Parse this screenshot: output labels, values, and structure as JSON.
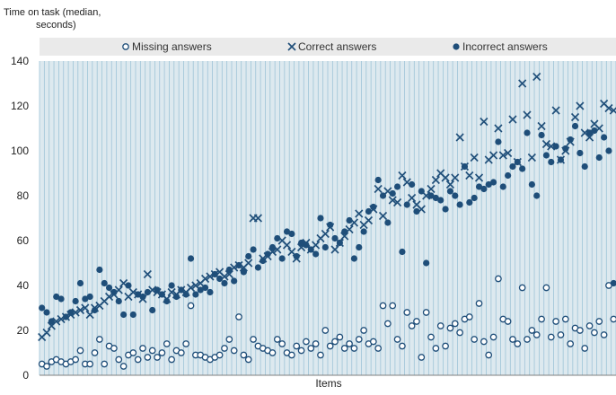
{
  "chart_data": {
    "type": "scatter",
    "ylabel_line1": "Time on task (median,",
    "ylabel_line2": "seconds)",
    "xlabel": "Items",
    "ylim": [
      0,
      140
    ],
    "yticks": [
      "0",
      "20",
      "40",
      "60",
      "80",
      "100",
      "120",
      "140"
    ],
    "grid": "vertical per item",
    "legend_placement": "top",
    "item_count": 120,
    "colors": {
      "primary": "#1f4e79",
      "grid": "#9ec4d7",
      "band": "#dde9ef",
      "axis": "#7f7f7f"
    },
    "series": [
      {
        "name": "Missing answers",
        "marker": "open-circle",
        "values": [
          5,
          4,
          6,
          7,
          6,
          5,
          6,
          7,
          11,
          5,
          5,
          10,
          16,
          5,
          13,
          12,
          7,
          4,
          9,
          10,
          7,
          12,
          8,
          11,
          8,
          10,
          14,
          7,
          11,
          10,
          14,
          31,
          9,
          9,
          8,
          7,
          8,
          9,
          12,
          16,
          11,
          26,
          9,
          7,
          16,
          13,
          12,
          11,
          10,
          16,
          14,
          10,
          9,
          13,
          11,
          15,
          12,
          14,
          9,
          20,
          13,
          15,
          17,
          12,
          14,
          12,
          16,
          20,
          14,
          15,
          12,
          31,
          23,
          31,
          16,
          13,
          28,
          22,
          24,
          8,
          28,
          17,
          12,
          22,
          13,
          21,
          23,
          19,
          25,
          26,
          16,
          32,
          15,
          9,
          17,
          43,
          25,
          24,
          16,
          14,
          39,
          16,
          20,
          18,
          25,
          39,
          17,
          24,
          18,
          25,
          14,
          21,
          20,
          12,
          22,
          19,
          24,
          18,
          40,
          25
        ]
      },
      {
        "name": "Correct answers",
        "marker": "x",
        "values": [
          17,
          19,
          22,
          24,
          25,
          26,
          27,
          28,
          29,
          30,
          27,
          30,
          31,
          33,
          35,
          36,
          38,
          41,
          35,
          37,
          36,
          34,
          45,
          38,
          37,
          36,
          34,
          37,
          36,
          38,
          37,
          39,
          40,
          41,
          43,
          44,
          45,
          46,
          44,
          45,
          48,
          49,
          48,
          50,
          70,
          70,
          52,
          53,
          55,
          56,
          60,
          58,
          55,
          52,
          57,
          59,
          56,
          58,
          61,
          63,
          66,
          56,
          59,
          62,
          65,
          68,
          72,
          67,
          69,
          74,
          83,
          71,
          82,
          78,
          77,
          89,
          86,
          79,
          76,
          74,
          80,
          83,
          87,
          90,
          88,
          85,
          88,
          106,
          93,
          89,
          97,
          88,
          113,
          96,
          98,
          110,
          98,
          99,
          114,
          95,
          130,
          116,
          97,
          133,
          111,
          103,
          102,
          118,
          96,
          100,
          104,
          115,
          120,
          108,
          106,
          112,
          110,
          121,
          119,
          118
        ]
      },
      {
        "name": "Incorrect answers",
        "marker": "filled-circle",
        "values": [
          30,
          28,
          24,
          35,
          34,
          26,
          28,
          33,
          41,
          34,
          35,
          29,
          47,
          41,
          39,
          37,
          33,
          27,
          40,
          27,
          36,
          35,
          37,
          29,
          38,
          36,
          33,
          40,
          35,
          38,
          36,
          52,
          36,
          38,
          39,
          37,
          45,
          43,
          41,
          47,
          42,
          49,
          46,
          53,
          56,
          48,
          51,
          54,
          57,
          61,
          52,
          64,
          63,
          53,
          59,
          58,
          56,
          54,
          70,
          57,
          67,
          61,
          59,
          64,
          69,
          52,
          57,
          64,
          73,
          75,
          87,
          80,
          68,
          81,
          84,
          55,
          76,
          85,
          73,
          82,
          50,
          80,
          79,
          78,
          74,
          82,
          80,
          76,
          93,
          77,
          79,
          84,
          83,
          85,
          86,
          104,
          84,
          89,
          93,
          95,
          92,
          108,
          85,
          80,
          107,
          98,
          95,
          102,
          96,
          101,
          105,
          111,
          99,
          93,
          108,
          109,
          97,
          106,
          100,
          41
        ]
      }
    ]
  }
}
